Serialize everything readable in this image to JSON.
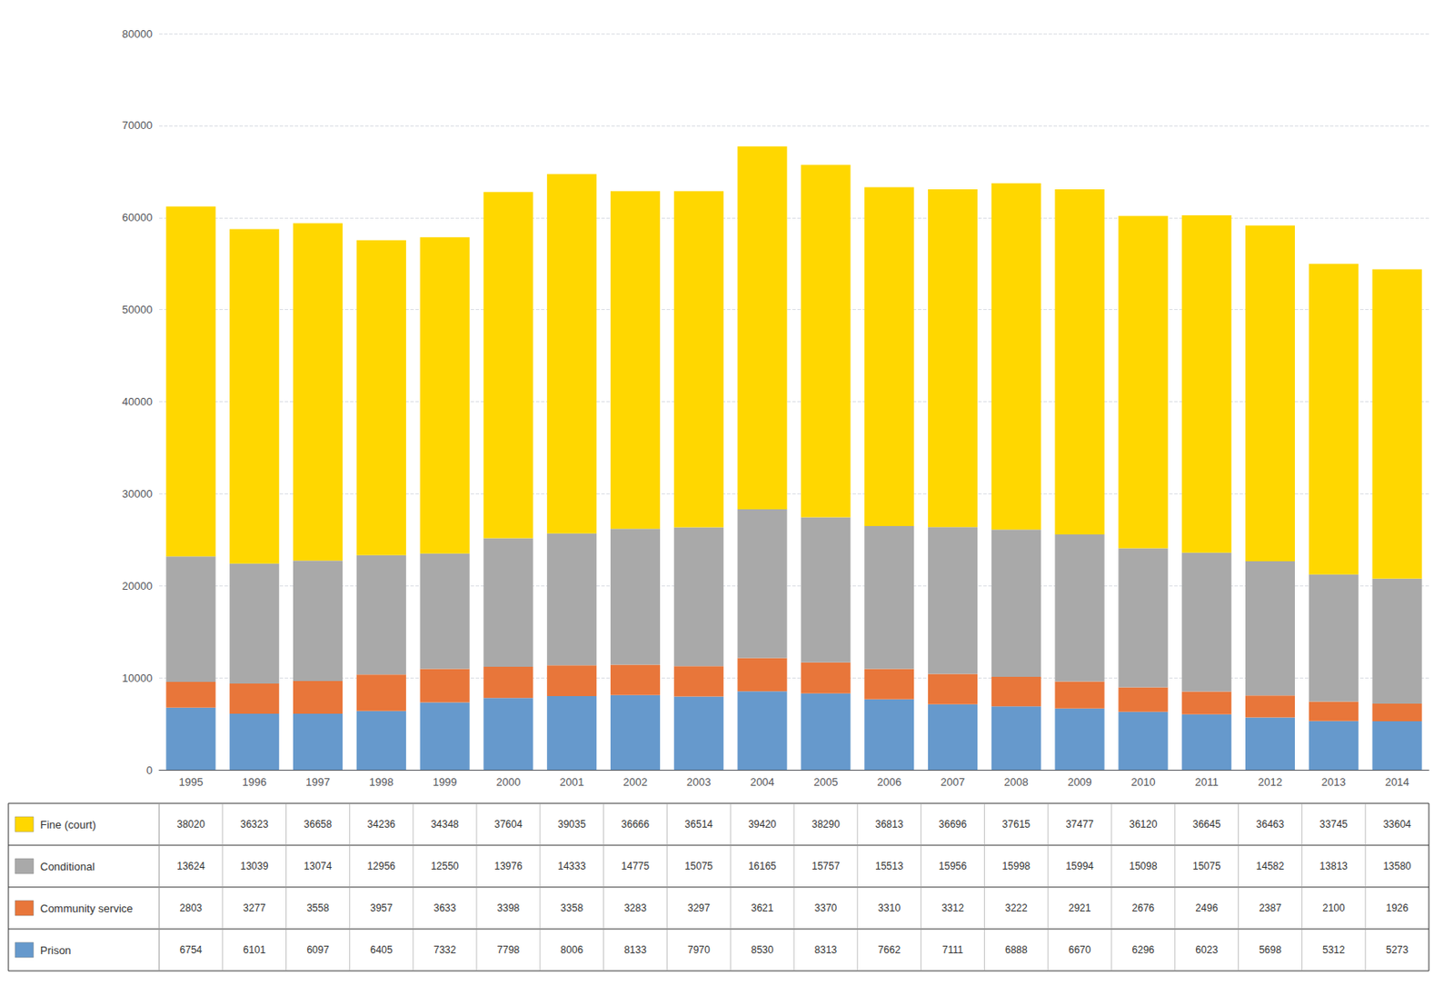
{
  "chart_data": {
    "type": "bar",
    "stacked": true,
    "categories": [
      1995,
      1996,
      1997,
      1998,
      1999,
      2000,
      2001,
      2002,
      2003,
      2004,
      2005,
      2006,
      2007,
      2008,
      2009,
      2010,
      2011,
      2012,
      2013,
      2014
    ],
    "series": [
      {
        "name": "Prison",
        "color": "#6699CC",
        "values": [
          6754,
          6101,
          6097,
          6405,
          7332,
          7798,
          8006,
          8133,
          7970,
          8530,
          8313,
          7662,
          7111,
          6888,
          6670,
          6296,
          6023,
          5698,
          5312,
          5273
        ]
      },
      {
        "name": "Community service",
        "color": "#E8763A",
        "values": [
          2803,
          3277,
          3558,
          3957,
          3633,
          3398,
          3358,
          3283,
          3297,
          3621,
          3370,
          3310,
          3312,
          3222,
          2921,
          2676,
          2496,
          2387,
          2100,
          1926
        ]
      },
      {
        "name": "Conditional",
        "color": "#A9A9A9",
        "values": [
          13624,
          13039,
          13074,
          12956,
          12550,
          13976,
          14333,
          14775,
          15075,
          16165,
          15757,
          15513,
          15956,
          15998,
          15994,
          15098,
          15075,
          14582,
          13813,
          13580
        ]
      },
      {
        "name": "Fine (court)",
        "color": "#FFD700",
        "values": [
          38020,
          36323,
          36658,
          34236,
          34348,
          37604,
          39035,
          36666,
          36514,
          39420,
          38290,
          36813,
          36696,
          37615,
          37477,
          36120,
          36645,
          36463,
          33745,
          33604
        ]
      }
    ],
    "ylim": [
      0,
      80000
    ],
    "yticks": [
      0,
      10000,
      20000,
      30000,
      40000,
      50000,
      60000,
      70000,
      80000
    ],
    "grid": true,
    "legend": "bottom"
  }
}
